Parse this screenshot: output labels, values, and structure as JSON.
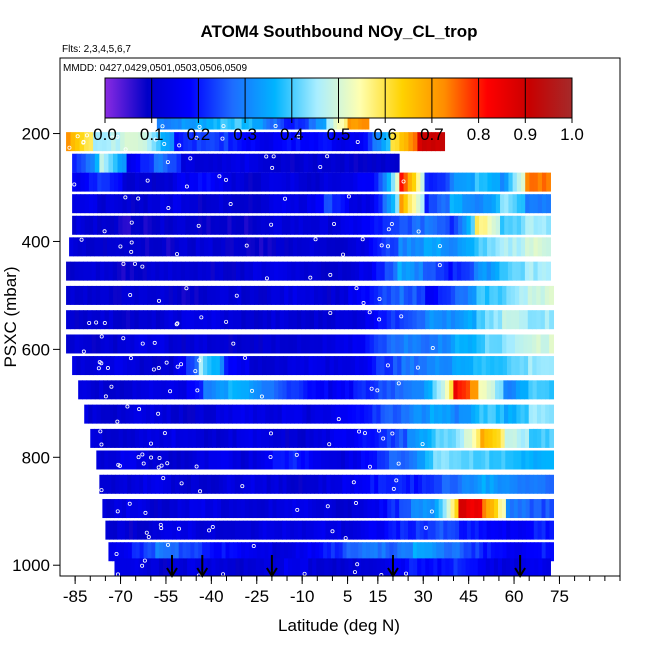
{
  "chart_data": {
    "type": "heatmap",
    "title": "ATOM4 Southbound NOy_CL_trop",
    "flights_label": "Flts: 2,3,4,5,6,7",
    "dates_label": "MMDD: 0427,0429,0501,0503,0506,0509",
    "xlabel": "Latitude (deg N)",
    "ylabel": "PSXC (mbar)",
    "xlim": [
      -90,
      95
    ],
    "ylim": [
      1020,
      60
    ],
    "x_ticks": [
      -85,
      -70,
      -55,
      -40,
      -25,
      -10,
      5,
      15,
      30,
      45,
      60,
      75
    ],
    "x_tick_labels": [
      "-85",
      "-70",
      "-55",
      "-40",
      "-25",
      "-10",
      "5",
      "15",
      "30",
      "45",
      "60",
      "75"
    ],
    "y_ticks": [
      200,
      400,
      600,
      800,
      1000
    ],
    "y_tick_labels": [
      "200",
      "400",
      "600",
      "800",
      "1000"
    ],
    "colorbar": {
      "min": 0.0,
      "max": 1.0,
      "tick_labels": [
        "0.0",
        "0.1",
        "0.2",
        "0.3",
        "0.4",
        "0.5",
        "0.6",
        "0.7",
        "0.8",
        "0.9",
        "1.0"
      ],
      "colors": [
        "#8a2be2",
        "#0000c8",
        "#0000ff",
        "#1e6cff",
        "#00b4ff",
        "#aaeeff",
        "#ffffb0",
        "#ffd200",
        "#ff8c00",
        "#ff0000",
        "#c80000",
        "#a52a2a"
      ]
    },
    "arrow_latitudes": [
      -53,
      -43,
      -20,
      20,
      62
    ],
    "bands": [
      {
        "p": 175,
        "x0": -58,
        "x1": 12,
        "v": [
          0.3,
          0.32,
          0.35,
          0.4,
          0.38,
          0.3,
          0.2,
          0.25,
          0.45,
          0.72
        ]
      },
      {
        "p": 215,
        "x0": -88,
        "x1": 37,
        "v": [
          0.7,
          0.45,
          0.5,
          0.45,
          0.2,
          0.25,
          0.2,
          0.15,
          0.18,
          0.2,
          0.15,
          0.2,
          0.6,
          0.9
        ]
      },
      {
        "p": 255,
        "x0": -86,
        "x1": 22,
        "v": [
          0.2,
          0.5,
          0.15,
          0.3,
          0.12,
          0.1,
          0.15,
          0.1,
          0.1,
          0.12,
          0.1,
          0.1
        ]
      },
      {
        "p": 290,
        "x0": -86,
        "x1": 72,
        "v": [
          0.15,
          0.25,
          0.12,
          0.1,
          0.15,
          0.2,
          0.12,
          0.1,
          0.15,
          0.1,
          0.12,
          0.15,
          0.2,
          0.8,
          0.2,
          0.3,
          0.4,
          0.3,
          0.75
        ]
      },
      {
        "p": 330,
        "x0": -86,
        "x1": 72,
        "v": [
          0.15,
          0.12,
          0.1,
          0.12,
          0.15,
          0.1,
          0.12,
          0.1,
          0.15,
          0.12,
          0.25,
          0.12,
          0.18,
          0.7,
          0.22,
          0.35,
          0.28,
          0.45,
          0.3
        ]
      },
      {
        "p": 370,
        "x0": -86,
        "x1": 72,
        "v": [
          0.12,
          0.1,
          0.08,
          0.1,
          0.12,
          0.1,
          0.08,
          0.1,
          0.12,
          0.12,
          0.12,
          0.15,
          0.2,
          0.25,
          0.3,
          0.22,
          0.6,
          0.4,
          0.45
        ]
      },
      {
        "p": 410,
        "x0": -87,
        "x1": 72,
        "v": [
          0.12,
          0.1,
          0.1,
          0.08,
          0.1,
          0.12,
          0.1,
          0.08,
          0.1,
          0.12,
          0.1,
          0.12,
          0.2,
          0.3,
          0.35,
          0.3,
          0.4,
          0.45,
          0.5
        ]
      },
      {
        "p": 455,
        "x0": -88,
        "x1": 72,
        "v": [
          0.1,
          0.12,
          0.08,
          0.1,
          0.12,
          0.1,
          0.1,
          0.12,
          0.15,
          0.12,
          0.1,
          0.12,
          0.18,
          0.35,
          0.25,
          0.2,
          0.3,
          0.4,
          0.45
        ]
      },
      {
        "p": 500,
        "x0": -88,
        "x1": 73,
        "v": [
          0.12,
          0.1,
          0.1,
          0.12,
          0.1,
          0.08,
          0.12,
          0.1,
          0.12,
          0.15,
          0.1,
          0.15,
          0.22,
          0.28,
          0.18,
          0.25,
          0.38,
          0.42,
          0.5
        ]
      },
      {
        "p": 545,
        "x0": -88,
        "x1": 73,
        "v": [
          0.1,
          0.12,
          0.1,
          0.1,
          0.12,
          0.15,
          0.12,
          0.1,
          0.12,
          0.1,
          0.12,
          0.12,
          0.2,
          0.25,
          0.32,
          0.3,
          0.4,
          0.48,
          0.45
        ]
      },
      {
        "p": 590,
        "x0": -88,
        "x1": 73,
        "v": [
          0.12,
          0.1,
          0.12,
          0.15,
          0.1,
          0.12,
          0.1,
          0.1,
          0.12,
          0.1,
          0.12,
          0.15,
          0.25,
          0.3,
          0.28,
          0.35,
          0.4,
          0.45,
          0.5
        ]
      },
      {
        "p": 630,
        "x0": -86,
        "x1": 73,
        "v": [
          0.12,
          0.15,
          0.12,
          0.1,
          0.12,
          0.45,
          0.2,
          0.1,
          0.12,
          0.15,
          0.12,
          0.15,
          0.22,
          0.28,
          0.3,
          0.35,
          0.38,
          0.4,
          0.45
        ]
      },
      {
        "p": 675,
        "x0": -84,
        "x1": 73,
        "v": [
          0.12,
          0.1,
          0.12,
          0.15,
          0.12,
          0.3,
          0.38,
          0.3,
          0.25,
          0.2,
          0.15,
          0.2,
          0.25,
          0.3,
          0.35,
          0.85,
          0.55,
          0.3,
          0.4
        ]
      },
      {
        "p": 720,
        "x0": -82,
        "x1": 73,
        "v": [
          0.12,
          0.1,
          0.15,
          0.12,
          0.1,
          0.12,
          0.15,
          0.12,
          0.15,
          0.12,
          0.15,
          0.2,
          0.25,
          0.3,
          0.35,
          0.3,
          0.4,
          0.35,
          0.45
        ]
      },
      {
        "p": 765,
        "x0": -80,
        "x1": 73,
        "v": [
          0.12,
          0.1,
          0.12,
          0.15,
          0.12,
          0.1,
          0.15,
          0.12,
          0.1,
          0.12,
          0.15,
          0.2,
          0.22,
          0.3,
          0.4,
          0.45,
          0.68,
          0.5,
          0.4
        ]
      },
      {
        "p": 805,
        "x0": -78,
        "x1": 73,
        "v": [
          0.12,
          0.15,
          0.12,
          0.1,
          0.12,
          0.15,
          0.12,
          0.18,
          0.22,
          0.15,
          0.12,
          0.18,
          0.25,
          0.3,
          0.45,
          0.42,
          0.4,
          0.38,
          0.35
        ]
      },
      {
        "p": 850,
        "x0": -77,
        "x1": 73,
        "v": [
          0.1,
          0.12,
          0.15,
          0.12,
          0.1,
          0.12,
          0.15,
          0.12,
          0.1,
          0.12,
          0.15,
          0.18,
          0.22,
          0.2,
          0.25,
          0.3,
          0.35,
          0.3,
          0.28
        ]
      },
      {
        "p": 895,
        "x0": -76,
        "x1": 73,
        "v": [
          0.12,
          0.15,
          0.1,
          0.12,
          0.15,
          0.12,
          0.1,
          0.12,
          0.15,
          0.12,
          0.1,
          0.15,
          0.2,
          0.3,
          0.35,
          0.9,
          0.75,
          0.3,
          0.25
        ]
      },
      {
        "p": 935,
        "x0": -75,
        "x1": 73,
        "v": [
          0.12,
          0.1,
          0.12,
          0.15,
          0.12,
          0.1,
          0.12,
          0.15,
          0.12,
          0.15,
          0.12,
          0.15,
          0.2,
          0.22,
          0.25,
          0.2,
          0.18,
          0.15,
          0.2
        ]
      },
      {
        "p": 975,
        "x0": -74,
        "x1": 73,
        "v": [
          0.15,
          0.2,
          0.3,
          0.25,
          0.2,
          0.18,
          0.15,
          0.12,
          0.15,
          0.2,
          0.25,
          0.3,
          0.25,
          0.35,
          0.3,
          0.25,
          0.2,
          0.15,
          0.2
        ]
      },
      {
        "p": 1005,
        "x0": -72,
        "x1": 72,
        "v": [
          0.15,
          0.12,
          0.1,
          0.15,
          0.12,
          0.1,
          0.12,
          0.15,
          0.12,
          0.1,
          0.12,
          0.15,
          0.2,
          0.18,
          0.22,
          0.15,
          0.12,
          0.15
        ]
      }
    ]
  }
}
